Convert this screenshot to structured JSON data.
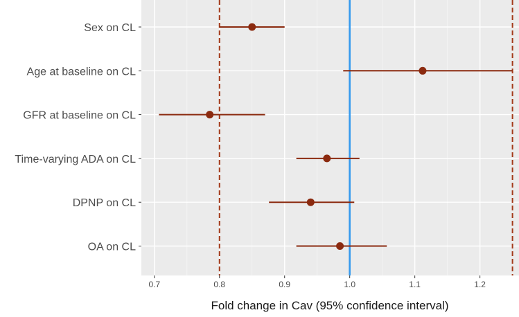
{
  "chart_data": {
    "type": "forest",
    "title": "",
    "xlabel": "Fold change in Cav (95% confidence interval)",
    "ylabel": "",
    "xlim": [
      0.68,
      1.26
    ],
    "xticks": [
      0.7,
      0.8,
      0.9,
      1.0,
      1.1,
      1.2
    ],
    "xtick_labels": [
      "0.7",
      "0.8",
      "0.9",
      "1.0",
      "1.1",
      "1.2"
    ],
    "reference_line": {
      "x": 1.0,
      "color": "#3399ee",
      "style": "solid"
    },
    "bound_lines": {
      "x": [
        0.8,
        1.25
      ],
      "color": "#a33a1a",
      "style": "dashed"
    },
    "point_color": "#8b2a0f",
    "rows": [
      {
        "label": "Sex on CL",
        "estimate": 0.85,
        "lower": 0.8,
        "upper": 0.9
      },
      {
        "label": "Age at baseline on CL",
        "estimate": 1.112,
        "lower": 0.99,
        "upper": 1.25
      },
      {
        "label": "GFR at baseline on CL",
        "estimate": 0.785,
        "lower": 0.707,
        "upper": 0.87
      },
      {
        "label": "Time-varying ADA on CL",
        "estimate": 0.965,
        "lower": 0.918,
        "upper": 1.015
      },
      {
        "label": "DPNP on CL",
        "estimate": 0.94,
        "lower": 0.876,
        "upper": 1.007
      },
      {
        "label": "OA on CL",
        "estimate": 0.985,
        "lower": 0.918,
        "upper": 1.057
      }
    ]
  }
}
